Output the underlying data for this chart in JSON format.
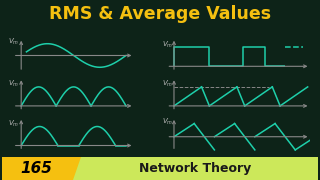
{
  "bg_color": "#0d2318",
  "title": "RMS & Average Values",
  "title_color": "#f5c010",
  "wave_color": "#1ecfaa",
  "axis_color": "#888888",
  "label_color": "#bbbbbb",
  "dashed_color": "#888888",
  "badge_number": "165",
  "badge_text": "Network Theory",
  "badge_yellow": "#f5c010",
  "badge_green": "#cce85a",
  "lw_wave": 1.1,
  "lw_axis": 0.8,
  "label_fontsize": 5.0,
  "title_fontsize": 12.5
}
